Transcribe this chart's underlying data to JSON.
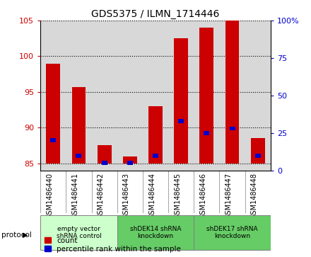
{
  "title": "GDS5375 / ILMN_1714446",
  "samples": [
    "GSM1486440",
    "GSM1486441",
    "GSM1486442",
    "GSM1486443",
    "GSM1486444",
    "GSM1486445",
    "GSM1486446",
    "GSM1486447",
    "GSM1486448"
  ],
  "count_values": [
    99.0,
    95.7,
    87.5,
    86.0,
    93.0,
    102.5,
    104.0,
    105.0,
    88.5
  ],
  "percentile_values": [
    20.0,
    10.0,
    5.0,
    5.0,
    10.0,
    33.0,
    25.0,
    28.0,
    10.0
  ],
  "ylim_left": [
    84,
    105
  ],
  "ylim_right": [
    0,
    100
  ],
  "yticks_left": [
    85,
    90,
    95,
    100,
    105
  ],
  "yticks_right": [
    0,
    25,
    50,
    75,
    100
  ],
  "bar_bottom": 85,
  "bar_color": "#cc0000",
  "percentile_color": "#0000cc",
  "bar_width": 0.55,
  "percentile_bar_width": 0.22,
  "groups": [
    {
      "label": "empty vector\nshRNA control",
      "start": 0,
      "end": 3,
      "color": "#ccffcc"
    },
    {
      "label": "shDEK14 shRNA\nknockdown",
      "start": 3,
      "end": 6,
      "color": "#66cc66"
    },
    {
      "label": "shDEK17 shRNA\nknockdown",
      "start": 6,
      "end": 9,
      "color": "#66cc66"
    }
  ],
  "legend_count_label": "count",
  "legend_percentile_label": "percentile rank within the sample",
  "protocol_label": "protocol",
  "background_color": "#ffffff",
  "tick_color_left": "#cc0000",
  "tick_color_right": "#0000cc",
  "plot_bg_color": "#d8d8d8",
  "title_fontsize": 10,
  "tick_fontsize": 8,
  "label_fontsize": 7,
  "legend_fontsize": 7.5
}
